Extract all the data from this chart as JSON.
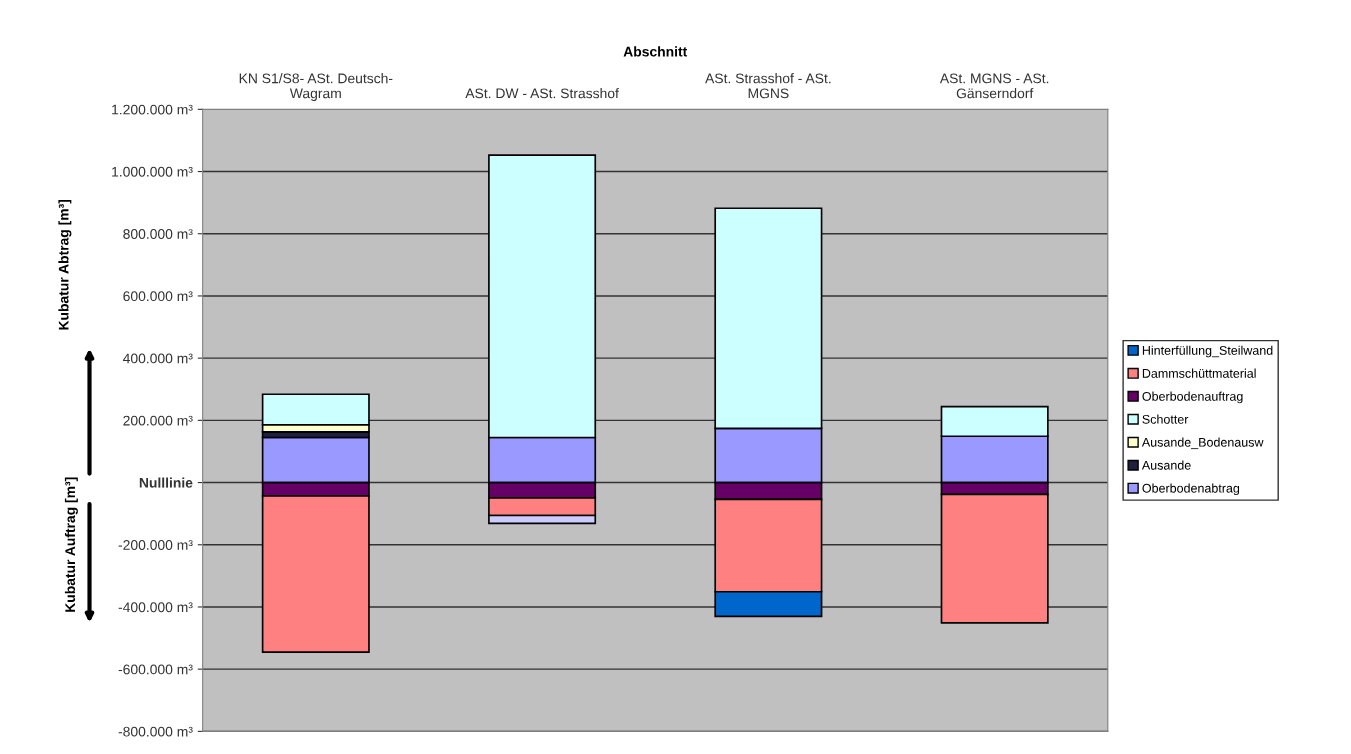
{
  "chart_data": {
    "type": "bar",
    "stacked": true,
    "xlabel": "Abschnitt",
    "ylabel": "Kubatur Abtrag [m³]",
    "annotations": [
      "Kubatur Auftrag [m³]"
    ],
    "categories": [
      "KN S1/S8- ASt. Deutsch-\nWagram",
      "ASt. DW - ASt. Strasshof",
      "ASt. Strasshof - ASt.\nMGNS",
      "ASt. MGNS - ASt.\nGänserndorf"
    ],
    "series": [
      {
        "name": "Oberbodenabtrag",
        "color": "#9999ff",
        "values": [
          145000,
          145000,
          174000,
          149000
        ]
      },
      {
        "name": "Ausande",
        "color": "#1f1f3f",
        "values": [
          18000,
          0,
          0,
          0
        ]
      },
      {
        "name": "Ausande_Bodenausw",
        "color": "#ffffcc",
        "values": [
          23000,
          0,
          0,
          0
        ]
      },
      {
        "name": "Schotter",
        "color": "#ccffff",
        "values": [
          98000,
          908000,
          708000,
          95000
        ]
      },
      {
        "name": "Oberbodenauftrag",
        "color": "#660066",
        "values": [
          -43000,
          -49000,
          -54000,
          -38000
        ]
      },
      {
        "name": "Dammschüttmaterial",
        "color": "#ff8080",
        "values": [
          -502000,
          -57000,
          -297000,
          -413000
        ]
      },
      {
        "name": "Hinterfüllung_Steilwand",
        "color": "#0066cc",
        "colors": [
          "#0066cc",
          "#ccccff",
          "#0066cc",
          "#0066cc"
        ],
        "values": [
          0,
          -25000,
          -79000,
          0
        ]
      }
    ],
    "ylim": [
      -800000,
      1200000
    ],
    "yticks": [
      {
        "value": -800000,
        "label": "-800.000 m³"
      },
      {
        "value": -600000,
        "label": "-600.000 m³"
      },
      {
        "value": -400000,
        "label": "-400.000 m³"
      },
      {
        "value": -200000,
        "label": "-200.000 m³"
      },
      {
        "value": 0,
        "label": "Nulllinie"
      },
      {
        "value": 200000,
        "label": "200.000 m³"
      },
      {
        "value": 400000,
        "label": "400.000 m³"
      },
      {
        "value": 600000,
        "label": "600.000 m³"
      },
      {
        "value": 800000,
        "label": "800.000 m³"
      },
      {
        "value": 1000000,
        "label": "1.000.000 m³"
      },
      {
        "value": 1200000,
        "label": "1.200.000 m³"
      }
    ],
    "grid": "y",
    "legend": "right"
  }
}
